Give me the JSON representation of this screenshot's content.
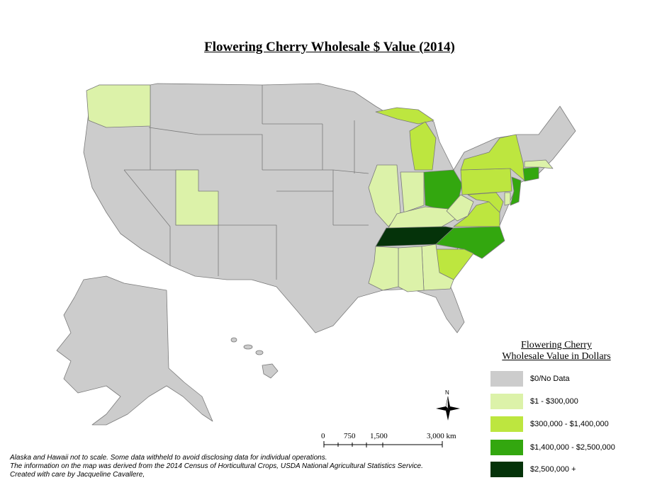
{
  "title": "Flowering Cherry Wholesale $ Value (2014)",
  "legend": {
    "title_line1": "Flowering Cherry",
    "title_line2": "Wholesale Value in Dollars",
    "items": [
      {
        "label": "$0/No Data",
        "color": "#cccccc"
      },
      {
        "label": "$1 - $300,000",
        "color": "#dcf2a9"
      },
      {
        "label": "$300,000 - $1,400,000",
        "color": "#bde63f"
      },
      {
        "label": "$1,400,000 - $2,500,000",
        "color": "#33a70f"
      },
      {
        "label": "$2,500,000 +",
        "color": "#05330a"
      }
    ]
  },
  "scale_bar": {
    "labels": [
      "0",
      "750",
      "1,500",
      "3,000 km"
    ]
  },
  "north_arrow": {
    "label": "N",
    "icon": "compass-rose-icon"
  },
  "credits": [
    "Alaska and Hawaii not to scale. Some data withheld to avoid disclosing data for individual operations.",
    "The information on the map was derived from the 2014 Census of Horticultural Crops, USDA National Agricultural Statistics Service.",
    "Created with care by Jacqueline Cavallere,"
  ],
  "states": {
    "TN": "$2,500,000 +",
    "OH": "$1,400,000 - $2,500,000",
    "NC": "$1,400,000 - $2,500,000",
    "NJ": "$1,400,000 - $2,500,000",
    "CT": "$1,400,000 - $2,500,000",
    "MI": "$300,000 - $1,400,000",
    "NY": "$300,000 - $1,400,000",
    "PA": "$300,000 - $1,400,000",
    "VA": "$300,000 - $1,400,000",
    "SC": "$300,000 - $1,400,000",
    "MD": "$300,000 - $1,400,000",
    "WA": "$1 - $300,000",
    "UT": "$1 - $300,000",
    "IL": "$1 - $300,000",
    "IN": "$1 - $300,000",
    "KY": "$1 - $300,000",
    "WV": "$1 - $300,000",
    "MS": "$1 - $300,000",
    "AL": "$1 - $300,000",
    "GA": "$1 - $300,000",
    "MA": "$1 - $300,000",
    "DE": "$1 - $300,000"
  }
}
